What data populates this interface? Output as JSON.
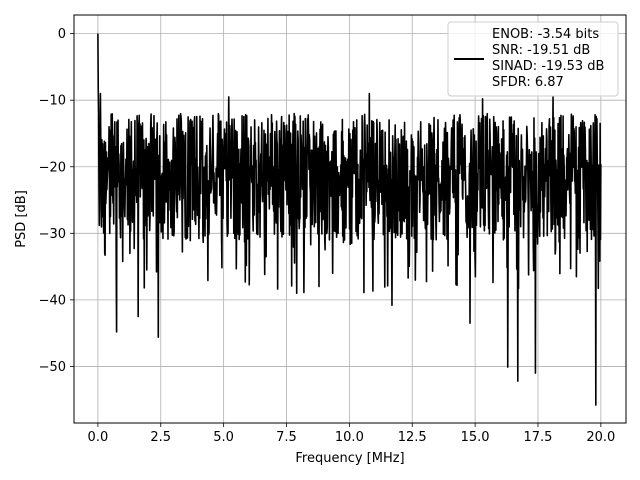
{
  "chart_data": {
    "type": "line",
    "title": "",
    "xlabel": "Frequency [MHz]",
    "ylabel": "PSD [dB]",
    "xlim": [
      -0.95,
      21.0
    ],
    "ylim": [
      -58.5,
      2.8
    ],
    "xticks": [
      0.0,
      2.5,
      5.0,
      7.5,
      10.0,
      12.5,
      15.0,
      17.5,
      20.0
    ],
    "xtick_labels": [
      "0.0",
      "2.5",
      "5.0",
      "7.5",
      "10.0",
      "12.5",
      "15.0",
      "17.5",
      "20.0"
    ],
    "yticks": [
      0,
      -10,
      -20,
      -30,
      -40,
      -50
    ],
    "ytick_labels": [
      "0",
      "−10",
      "−20",
      "−30",
      "−40",
      "−50"
    ],
    "grid": true,
    "legend_position": "top-right",
    "colors": {
      "series": "#000000",
      "grid": "#b0b0b0",
      "frame": "#000000"
    },
    "series": [
      {
        "name": "ENOB: -3.54 bits\nSNR: -19.51 dB\nSINAD: -19.53 dB\nSFDR: 6.87",
        "legend_lines": [
          "ENOB: -3.54 bits",
          "SNR: -19.51 dB",
          "SINAD: -19.53 dB",
          "SFDR: 6.87"
        ],
        "description_values": {
          "x_range": [
            0.0,
            20.0
          ],
          "peak": {
            "x": 0.0,
            "y": 0.0
          },
          "typical_band_db": [
            -31,
            -12
          ],
          "notable_dips": [
            {
              "x": 0.75,
              "y": -44.8
            },
            {
              "x": 1.6,
              "y": -42.5
            },
            {
              "x": 2.4,
              "y": -45.6
            },
            {
              "x": 7.9,
              "y": -39.0
            },
            {
              "x": 11.7,
              "y": -40.8
            },
            {
              "x": 14.8,
              "y": -43.5
            },
            {
              "x": 16.3,
              "y": -50.1
            },
            {
              "x": 16.7,
              "y": -52.2
            },
            {
              "x": 17.4,
              "y": -51.0
            },
            {
              "x": 19.8,
              "y": -55.8
            }
          ],
          "notable_peaks": [
            {
              "x": 0.1,
              "y": -9.0
            },
            {
              "x": 5.2,
              "y": -9.5
            },
            {
              "x": 10.8,
              "y": -9.0
            },
            {
              "x": 15.3,
              "y": -9.8
            },
            {
              "x": 18.1,
              "y": -9.5
            }
          ]
        }
      }
    ]
  }
}
